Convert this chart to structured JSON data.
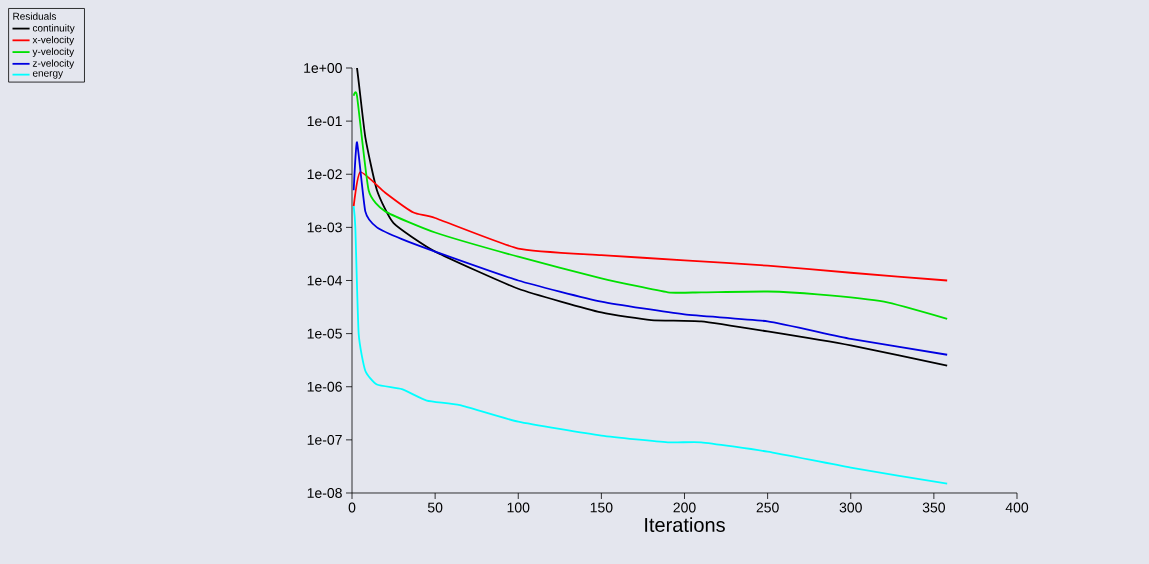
{
  "chart_data": {
    "type": "line",
    "xlabel": "Iterations",
    "legend_title": "Residuals",
    "legend": "top left",
    "log": "y",
    "marker": "none",
    "line_style": "solid",
    "grid": false,
    "xlim": [
      0,
      400
    ],
    "ylim": [
      1e-08,
      1
    ],
    "xticks": [
      0,
      50,
      100,
      150,
      200,
      250,
      300,
      350,
      400
    ],
    "yticks": [
      {
        "value": 1,
        "label": "1e+00"
      },
      {
        "value": 0.1,
        "label": "1e-01"
      },
      {
        "value": 0.01,
        "label": "1e-02"
      },
      {
        "value": 0.001,
        "label": "1e-03"
      },
      {
        "value": 0.0001,
        "label": "1e-04"
      },
      {
        "value": 1e-05,
        "label": "1e-05"
      },
      {
        "value": 1e-06,
        "label": "1e-06"
      },
      {
        "value": 1e-07,
        "label": "1e-07"
      },
      {
        "value": 1e-08,
        "label": "1e-08"
      }
    ],
    "series": [
      {
        "name": "continuity",
        "color": "#000000",
        "x": [
          1,
          3,
          8,
          15,
          25,
          50,
          100,
          150,
          180,
          210,
          250,
          300,
          358
        ],
        "values": [
          1,
          1,
          0.05,
          0.005,
          0.0012,
          0.00035,
          7e-05,
          2.5e-05,
          1.8e-05,
          1.7e-05,
          1.1e-05,
          6e-06,
          2.5e-06
        ]
      },
      {
        "name": "x-velocity",
        "color": "#ff0000",
        "x": [
          1,
          5,
          20,
          37,
          50,
          100,
          150,
          200,
          250,
          300,
          358
        ],
        "values": [
          0.0025,
          0.011,
          0.0045,
          0.0019,
          0.0015,
          0.0004,
          0.0003,
          0.00024,
          0.00019,
          0.00014,
          0.0001
        ]
      },
      {
        "name": "y-velocity",
        "color": "#00e000",
        "x": [
          1,
          3,
          10,
          20,
          50,
          100,
          150,
          190,
          210,
          250,
          280,
          320,
          358
        ],
        "values": [
          0.3,
          0.3,
          0.005,
          0.002,
          0.0008,
          0.00028,
          0.00011,
          6e-05,
          6e-05,
          6.2e-05,
          5.5e-05,
          4e-05,
          1.9e-05
        ]
      },
      {
        "name": "z-velocity",
        "color": "#0000e0",
        "x": [
          1,
          3,
          8,
          15,
          30,
          50,
          100,
          150,
          200,
          250,
          300,
          358
        ],
        "values": [
          0.005,
          0.04,
          0.002,
          0.001,
          0.0006,
          0.00035,
          0.0001,
          4e-05,
          2.3e-05,
          1.7e-05,
          8e-06,
          4e-06
        ]
      },
      {
        "name": "energy",
        "color": "#00ffff",
        "x": [
          1,
          2,
          4,
          8,
          15,
          30,
          45,
          65,
          100,
          150,
          190,
          210,
          250,
          300,
          358
        ],
        "values": [
          0.0025,
          0.001,
          1e-05,
          2e-06,
          1.1e-06,
          9e-07,
          5.5e-07,
          4.5e-07,
          2.2e-07,
          1.2e-07,
          9e-08,
          9e-08,
          6e-08,
          3e-08,
          1.5e-08
        ]
      }
    ]
  }
}
